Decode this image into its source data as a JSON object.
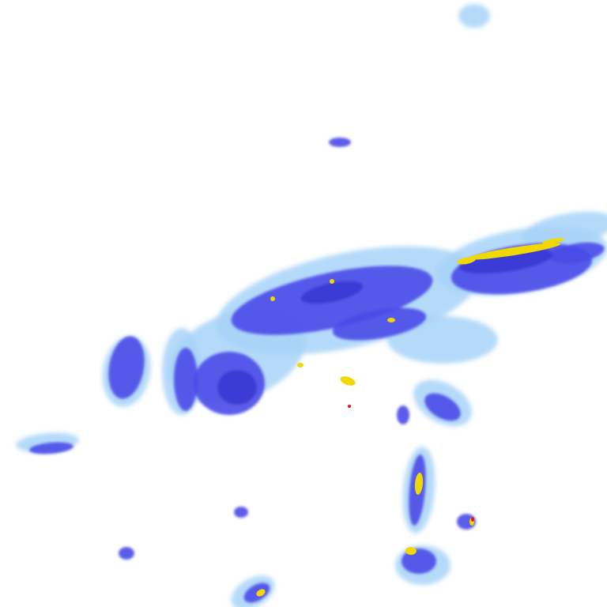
{
  "map": {
    "layer": "precipitation-radar",
    "colors": {
      "background": "#ffffff",
      "light": "#a8d4f8",
      "light_mid": "#7fa8f0",
      "moderate": "#4a4ae8",
      "heavy": "#3434d0",
      "intense": "#f0d800",
      "extreme": "#e01818"
    }
  }
}
